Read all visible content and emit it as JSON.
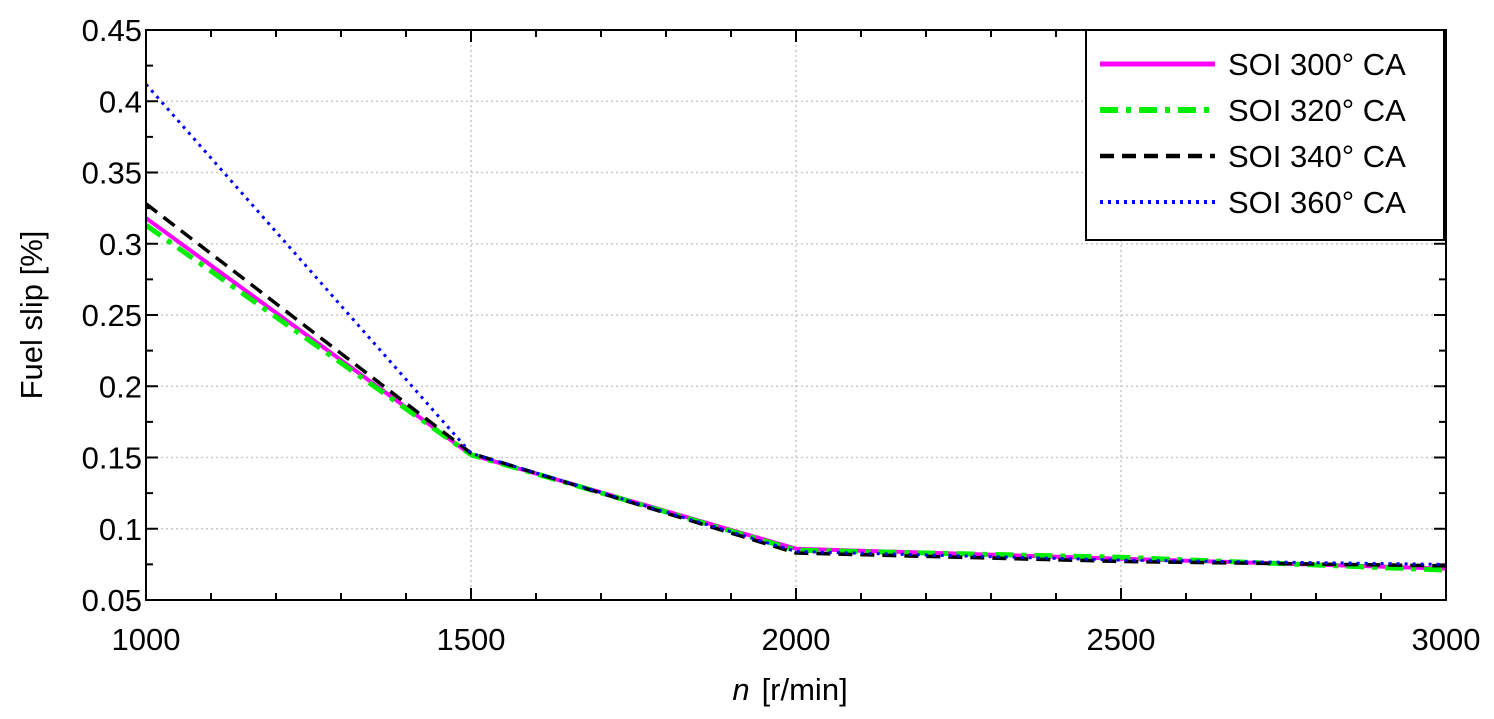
{
  "chart_data": {
    "type": "line",
    "x": [
      1000,
      1500,
      2000,
      2500,
      3000
    ],
    "xticks": [
      "1000",
      "1500",
      "2000",
      "2500",
      "3000"
    ],
    "yticks": [
      "0.05",
      "0.1",
      "0.15",
      "0.2",
      "0.25",
      "0.3",
      "0.35",
      "0.4",
      "0.45"
    ],
    "xlim": [
      1000,
      3000
    ],
    "ylim": [
      0.05,
      0.45
    ],
    "xlabel_var": "n",
    "xlabel_unit": "[r/min]",
    "ylabel": "Fuel slip [%]",
    "grid": true,
    "legend_position": "top-right",
    "series": [
      {
        "name": "SOI 300° CA",
        "values": [
          0.318,
          0.152,
          0.086,
          0.079,
          0.072
        ],
        "color": "#ff00ff",
        "style": "solid"
      },
      {
        "name": "SOI 320° CA",
        "values": [
          0.313,
          0.152,
          0.085,
          0.08,
          0.071
        ],
        "color": "#00ee00",
        "style": "dashdot"
      },
      {
        "name": "SOI 340° CA",
        "values": [
          0.328,
          0.153,
          0.083,
          0.077,
          0.074
        ],
        "color": "#000000",
        "style": "dashed"
      },
      {
        "name": "SOI 360° CA",
        "values": [
          0.412,
          0.153,
          0.084,
          0.078,
          0.075
        ],
        "color": "#0000ff",
        "style": "dotted"
      }
    ]
  }
}
